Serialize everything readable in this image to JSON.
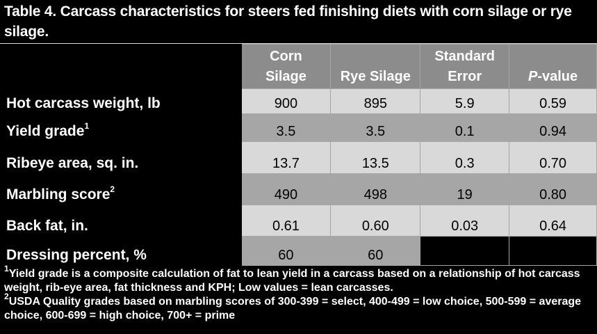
{
  "title": "Table 4. Carcass characteristics for steers fed finishing diets with corn silage or rye silage.",
  "columns": {
    "corn_line1": "Corn",
    "corn_line2": "Silage",
    "rye": "Rye Silage",
    "se_line1": "Standard",
    "se_line2": "Error",
    "p_italic": "P",
    "p_rest": "-value"
  },
  "rows": [
    {
      "label": "Hot carcass weight, lb",
      "sup": "",
      "corn": "900",
      "rye": "895",
      "se": "5.9",
      "p": "0.59"
    },
    {
      "label": "Yield grade",
      "sup": "1",
      "corn": "3.5",
      "rye": "3.5",
      "se": "0.1",
      "p": "0.94"
    },
    {
      "label": "Ribeye area, sq. in.",
      "sup": "",
      "corn": "13.7",
      "rye": "13.5",
      "se": "0.3",
      "p": "0.70"
    },
    {
      "label": "Marbling score",
      "sup": "2",
      "corn": "490",
      "rye": "498",
      "se": "19",
      "p": "0.80"
    },
    {
      "label": "Back fat, in.",
      "sup": "",
      "corn": "0.61",
      "rye": "0.60",
      "se": "0.03",
      "p": "0.64"
    },
    {
      "label": "Dressing percent, %",
      "sup": "",
      "corn": "60",
      "rye": "60",
      "se": "",
      "p": ""
    }
  ],
  "footnotes": [
    {
      "sup": "1",
      "text": "Yield grade is a composite calculation of fat to lean yield in a carcass based on a relationship of hot carcass weight, rib-eye area, fat thickness and KPH; Low values = lean carcasses."
    },
    {
      "sup": "2",
      "text": "USDA Quality grades based on marbling scores of 300-399 = select, 400-499 = low choice, 500-599 = average choice, 600-699 = high choice, 700+ = prime"
    }
  ],
  "colors": {
    "light": "#d9d9d9",
    "dark": "#a6a6a6",
    "header": "#8c8c8c",
    "background": "#000000"
  }
}
